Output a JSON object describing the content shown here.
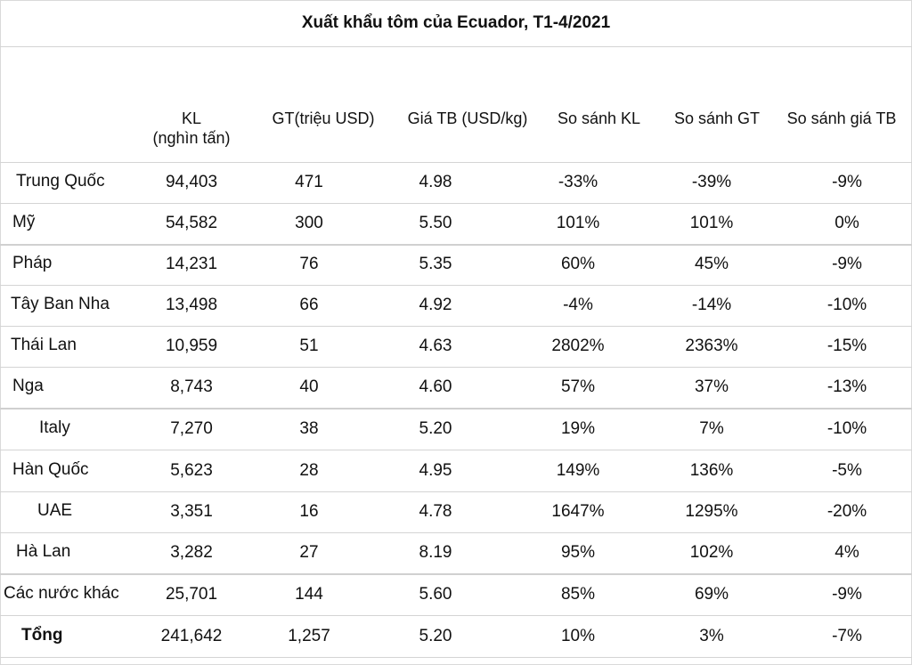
{
  "title": "Xuất khẩu tôm của Ecuador, T1-4/2021",
  "headers": {
    "kl": [
      "KL",
      "(nghìn tấn)"
    ],
    "gt": "GT(triệu USD)",
    "gia": "Giá TB (USD/kg)",
    "ss_kl": "So sánh KL",
    "ss_gt": "So sánh GT",
    "ss_gia": "So sánh giá TB"
  },
  "rows": [
    {
      "name": "Trung Quốc",
      "kl": "94,403",
      "gt": "471",
      "gia": "4.98",
      "ss_kl": "-33%",
      "ss_gt": "-39%",
      "ss_gia": "-9%"
    },
    {
      "name": "Mỹ",
      "kl": "54,582",
      "gt": "300",
      "gia": "5.50",
      "ss_kl": "101%",
      "ss_gt": "101%",
      "ss_gia": "0%"
    },
    {
      "name": "Pháp",
      "kl": "14,231",
      "gt": "76",
      "gia": "5.35",
      "ss_kl": "60%",
      "ss_gt": "45%",
      "ss_gia": "-9%"
    },
    {
      "name": "Tây Ban Nha",
      "kl": "13,498",
      "gt": "66",
      "gia": "4.92",
      "ss_kl": "-4%",
      "ss_gt": "-14%",
      "ss_gia": "-10%"
    },
    {
      "name": "Thái Lan",
      "kl": "10,959",
      "gt": "51",
      "gia": "4.63",
      "ss_kl": "2802%",
      "ss_gt": "2363%",
      "ss_gia": "-15%"
    },
    {
      "name": "Nga",
      "kl": "8,743",
      "gt": "40",
      "gia": "4.60",
      "ss_kl": "57%",
      "ss_gt": "37%",
      "ss_gia": "-13%"
    },
    {
      "name": "Italy",
      "kl": "7,270",
      "gt": "38",
      "gia": "5.20",
      "ss_kl": "19%",
      "ss_gt": "7%",
      "ss_gia": "-10%"
    },
    {
      "name": "Hàn Quốc",
      "kl": "5,623",
      "gt": "28",
      "gia": "4.95",
      "ss_kl": "149%",
      "ss_gt": "136%",
      "ss_gia": "-5%"
    },
    {
      "name": "UAE",
      "kl": "3,351",
      "gt": "16",
      "gia": "4.78",
      "ss_kl": "1647%",
      "ss_gt": "1295%",
      "ss_gia": "-20%"
    },
    {
      "name": "Hà Lan",
      "kl": "3,282",
      "gt": "27",
      "gia": "8.19",
      "ss_kl": "95%",
      "ss_gt": "102%",
      "ss_gia": "4%"
    },
    {
      "name": "Các nước khác",
      "kl": "25,701",
      "gt": "144",
      "gia": "5.60",
      "ss_kl": "85%",
      "ss_gt": "69%",
      "ss_gia": "-9%"
    },
    {
      "name": "Tổng",
      "kl": "241,642",
      "gt": "1,257",
      "gia": "5.20",
      "ss_kl": "10%",
      "ss_gt": "3%",
      "ss_gia": "-7%"
    }
  ]
}
